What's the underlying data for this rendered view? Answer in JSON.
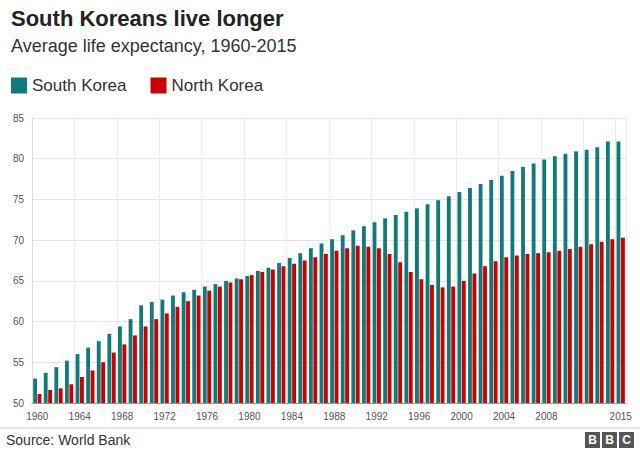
{
  "chart_data": {
    "type": "bar",
    "title": "South Koreans live longer",
    "subtitle": "Average life expectancy, 1960-2015",
    "source": "Source: World Bank",
    "logo": "BBC",
    "categories": [
      "1960",
      null,
      null,
      null,
      "1964",
      null,
      null,
      null,
      "1968",
      null,
      null,
      null,
      "1972",
      null,
      null,
      null,
      "1976",
      null,
      null,
      null,
      "1980",
      null,
      null,
      null,
      "1984",
      null,
      null,
      null,
      "1988",
      null,
      null,
      null,
      "1992",
      null,
      null,
      null,
      "1996",
      null,
      null,
      null,
      "2000",
      null,
      null,
      null,
      "2004",
      null,
      null,
      null,
      "2008",
      null,
      null,
      null,
      null,
      null,
      null,
      "2015"
    ],
    "series": [
      {
        "name": "South Korea",
        "color": "#127a78",
        "values": [
          53.0,
          53.7,
          54.4,
          55.2,
          56.0,
          56.8,
          57.6,
          58.5,
          59.4,
          60.3,
          62.0,
          62.4,
          62.7,
          63.2,
          63.6,
          63.9,
          64.3,
          64.6,
          65.0,
          65.3,
          65.6,
          66.2,
          66.6,
          67.2,
          67.8,
          68.4,
          69.0,
          69.6,
          70.1,
          70.6,
          71.2,
          71.7,
          72.2,
          72.7,
          73.1,
          73.5,
          73.9,
          74.4,
          74.9,
          75.4,
          75.9,
          76.4,
          76.9,
          77.4,
          77.9,
          78.5,
          79.0,
          79.4,
          79.9,
          80.3,
          80.6,
          80.9,
          81.1,
          81.4,
          82.1,
          82.1
        ]
      },
      {
        "name": "North Korea",
        "color": "#cc0000",
        "values": [
          51.1,
          51.6,
          51.8,
          52.3,
          53.2,
          54.0,
          55.0,
          56.2,
          57.2,
          58.3,
          59.4,
          60.3,
          61.0,
          61.8,
          62.5,
          63.2,
          63.8,
          64.3,
          64.8,
          65.2,
          65.7,
          66.1,
          66.4,
          66.8,
          67.1,
          67.5,
          67.9,
          68.3,
          68.7,
          69.0,
          69.3,
          69.2,
          69.0,
          68.3,
          67.3,
          66.1,
          65.2,
          64.5,
          64.2,
          64.3,
          65.0,
          65.9,
          66.8,
          67.4,
          67.9,
          68.1,
          68.3,
          68.4,
          68.5,
          68.7,
          68.9,
          69.2,
          69.5,
          69.8,
          70.1,
          70.3
        ]
      }
    ],
    "ylim": [
      50,
      85
    ],
    "yticks": [
      50,
      55,
      60,
      65,
      70,
      75,
      80,
      85
    ],
    "grid": true,
    "legend": "top-left"
  }
}
